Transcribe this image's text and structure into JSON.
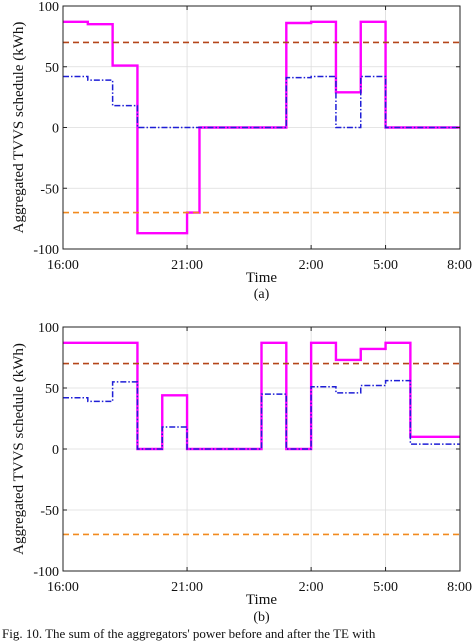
{
  "chart_data": [
    {
      "type": "line",
      "panel_label": "(a)",
      "xlabel": "Time",
      "ylabel": "Aggregated TVVS schedule (kWh)",
      "x_ticks": [
        "16:00",
        "21:00",
        "2:00",
        "5:00",
        "8:00"
      ],
      "y_ticks": [
        "100",
        "50",
        "0",
        "-50",
        "-100"
      ],
      "ylim": [
        -100,
        100
      ],
      "x_hours_range": [
        16,
        32
      ],
      "x_tick_hours": [
        16,
        21,
        26,
        29,
        32
      ],
      "grid": true,
      "series": [
        {
          "style": "solid",
          "color": "#ff00ff",
          "steps": [
            {
              "t": 16,
              "y": 87
            },
            {
              "t": 17,
              "y": 85
            },
            {
              "t": 18,
              "y": 51
            },
            {
              "t": 19,
              "y": -87
            },
            {
              "t": 21,
              "y": -70
            },
            {
              "t": 21.5,
              "y": 0
            },
            {
              "t": 24,
              "y": 0
            },
            {
              "t": 25,
              "y": 86
            },
            {
              "t": 26,
              "y": 87
            },
            {
              "t": 27,
              "y": 29
            },
            {
              "t": 28,
              "y": 87
            },
            {
              "t": 29,
              "y": 0
            },
            {
              "t": 32,
              "y": 0
            }
          ]
        },
        {
          "style": "dash-dot",
          "color": "#1f1fd6",
          "steps": [
            {
              "t": 16,
              "y": 42
            },
            {
              "t": 17,
              "y": 39
            },
            {
              "t": 18,
              "y": 18
            },
            {
              "t": 19,
              "y": 0
            },
            {
              "t": 25,
              "y": 41
            },
            {
              "t": 26,
              "y": 42
            },
            {
              "t": 27,
              "y": 0
            },
            {
              "t": 28,
              "y": 42
            },
            {
              "t": 29,
              "y": 0
            },
            {
              "t": 32,
              "y": 0
            }
          ]
        },
        {
          "style": "dashed",
          "color": "#b5461a",
          "constant": 70
        },
        {
          "style": "dashed",
          "color": "#f28a1e",
          "constant": -70
        }
      ]
    },
    {
      "type": "line",
      "panel_label": "(b)",
      "xlabel": "Time",
      "ylabel": "Aggregated TVVS schedule (kWh)",
      "x_ticks": [
        "16:00",
        "21:00",
        "2:00",
        "5:00",
        "8:00"
      ],
      "y_ticks": [
        "100",
        "50",
        "0",
        "-50",
        "-100"
      ],
      "ylim": [
        -100,
        100
      ],
      "x_hours_range": [
        16,
        32
      ],
      "x_tick_hours": [
        16,
        21,
        26,
        29,
        32
      ],
      "grid": true,
      "series": [
        {
          "style": "solid",
          "color": "#ff00ff",
          "steps": [
            {
              "t": 16,
              "y": 87
            },
            {
              "t": 19,
              "y": 0
            },
            {
              "t": 20,
              "y": 44
            },
            {
              "t": 21,
              "y": 0
            },
            {
              "t": 24,
              "y": 87
            },
            {
              "t": 25,
              "y": 0
            },
            {
              "t": 26,
              "y": 87
            },
            {
              "t": 27,
              "y": 73
            },
            {
              "t": 28,
              "y": 82
            },
            {
              "t": 29,
              "y": 87
            },
            {
              "t": 30,
              "y": 10
            },
            {
              "t": 32,
              "y": 10
            }
          ]
        },
        {
          "style": "dash-dot",
          "color": "#1f1fd6",
          "steps": [
            {
              "t": 16,
              "y": 42
            },
            {
              "t": 17,
              "y": 39
            },
            {
              "t": 18,
              "y": 55
            },
            {
              "t": 19,
              "y": 0
            },
            {
              "t": 20,
              "y": 18
            },
            {
              "t": 21,
              "y": 0
            },
            {
              "t": 24,
              "y": 45
            },
            {
              "t": 25,
              "y": 0
            },
            {
              "t": 26,
              "y": 51
            },
            {
              "t": 27,
              "y": 46
            },
            {
              "t": 28,
              "y": 52
            },
            {
              "t": 29,
              "y": 56
            },
            {
              "t": 30,
              "y": 4
            },
            {
              "t": 32,
              "y": 4
            }
          ]
        },
        {
          "style": "dashed",
          "color": "#b5461a",
          "constant": 70
        },
        {
          "style": "dashed",
          "color": "#f28a1e",
          "constant": -70
        }
      ]
    }
  ],
  "caption": "Fig. 10. The sum of the aggregators' power before and after the TE with"
}
